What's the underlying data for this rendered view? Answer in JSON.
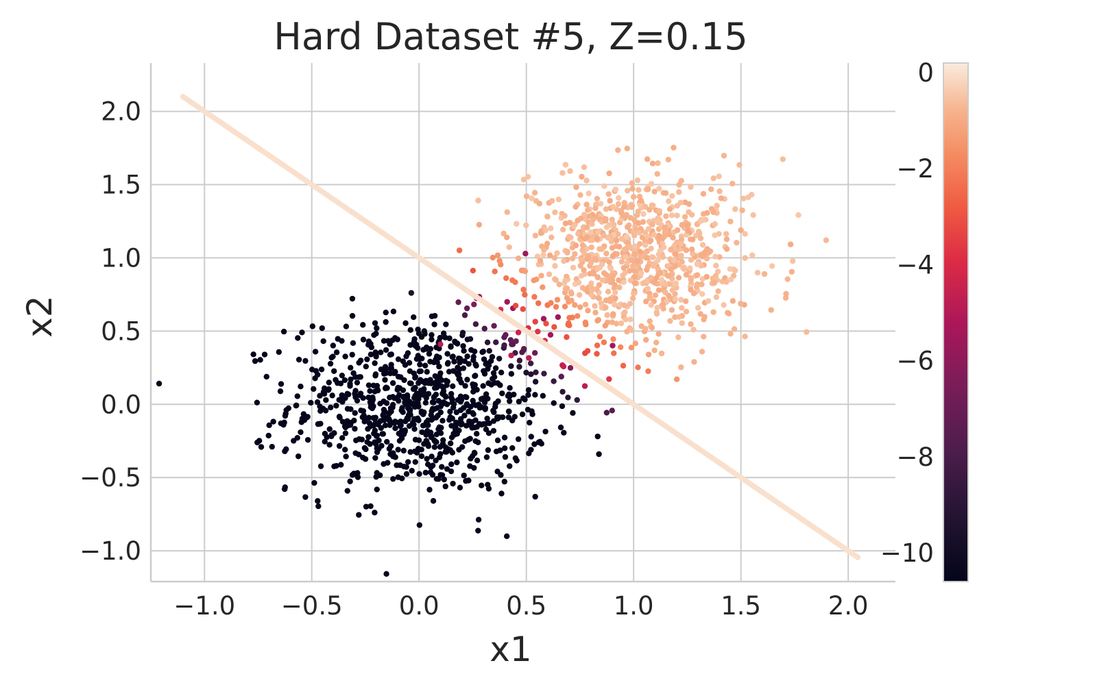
{
  "chart_data": {
    "type": "scatter",
    "title": "Hard Dataset #5, Z=0.15",
    "xlabel": "x1",
    "ylabel": "x2",
    "xlim": [
      -1.25,
      2.22
    ],
    "ylim": [
      -1.21,
      2.33
    ],
    "xticks": [
      -1.0,
      -0.5,
      0.0,
      0.5,
      1.0,
      1.5,
      2.0
    ],
    "xtick_labels": [
      "−1.0",
      "−0.5",
      "0.0",
      "0.5",
      "1.0",
      "1.5",
      "2.0"
    ],
    "yticks": [
      -1.0,
      -0.5,
      0.0,
      0.5,
      1.0,
      1.5,
      2.0
    ],
    "ytick_labels": [
      "−1.0",
      "−0.5",
      "0.0",
      "0.5",
      "1.0",
      "1.5",
      "2.0"
    ],
    "grid": true,
    "colormap": "rocket",
    "colorbar": {
      "range": [
        -10.6,
        0.2
      ],
      "ticks": [
        0,
        -2,
        -4,
        -6,
        -8,
        -10
      ],
      "tick_labels": [
        "0",
        "−2",
        "−4",
        "−6",
        "−8",
        "−10"
      ]
    },
    "clusters": [
      {
        "role": "low",
        "center": [
          0.0,
          0.0
        ],
        "spread": 0.3,
        "count": 900
      },
      {
        "role": "high",
        "center": [
          1.0,
          1.0
        ],
        "spread": 0.28,
        "count": 900
      }
    ],
    "boundary_line": {
      "x_range": [
        -1.1,
        2.05
      ],
      "slope": -1.0,
      "intercept": 1.0,
      "color_value": 0
    }
  }
}
